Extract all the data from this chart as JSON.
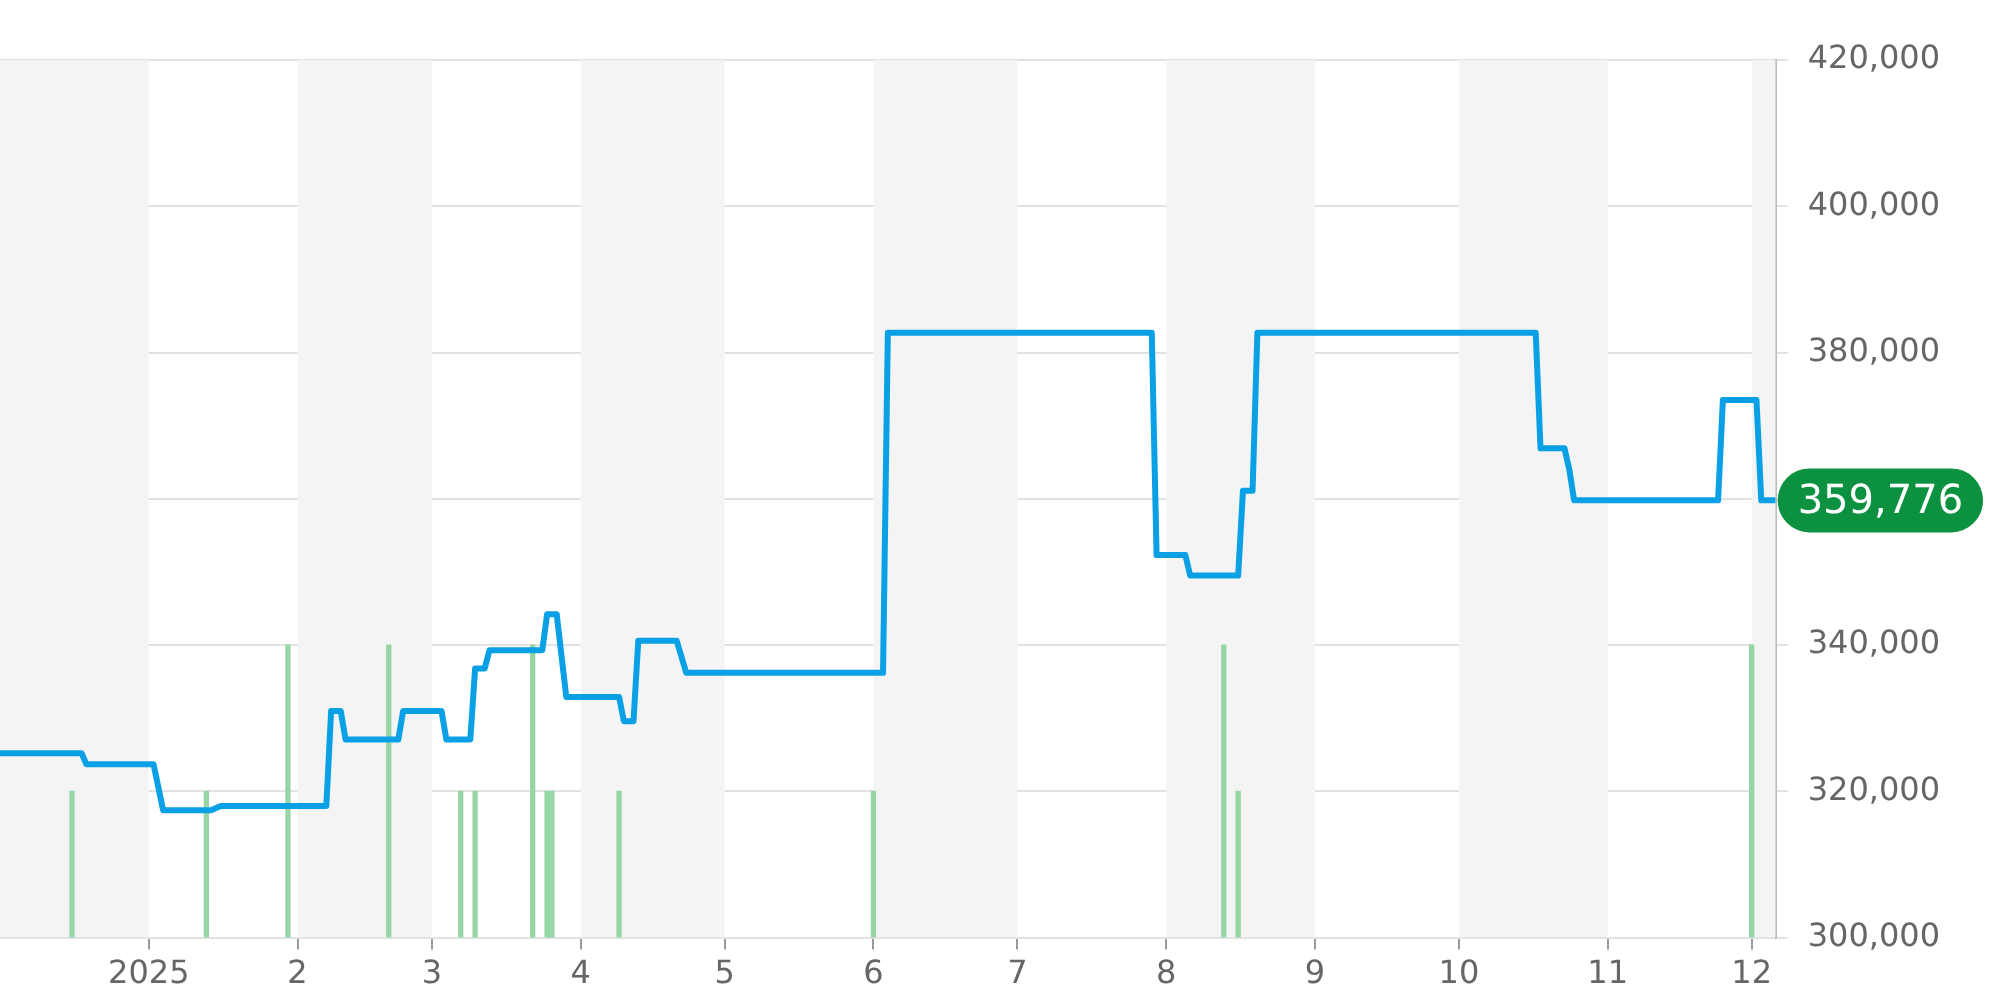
{
  "chart_data": {
    "type": "line",
    "xlim": [
      "2024-12-01",
      "2025-12-06"
    ],
    "xticks": [
      {
        "value": "2025-01-01",
        "label": "2025"
      },
      {
        "value": "2025-02-01",
        "label": "2"
      },
      {
        "value": "2025-03-01",
        "label": "3"
      },
      {
        "value": "2025-04-01",
        "label": "4"
      },
      {
        "value": "2025-05-01",
        "label": "5"
      },
      {
        "value": "2025-06-01",
        "label": "6"
      },
      {
        "value": "2025-07-01",
        "label": "7"
      },
      {
        "value": "2025-08-01",
        "label": "8"
      },
      {
        "value": "2025-09-01",
        "label": "9"
      },
      {
        "value": "2025-10-01",
        "label": "10"
      },
      {
        "value": "2025-11-01",
        "label": "11"
      },
      {
        "value": "2025-12-01",
        "label": "12"
      }
    ],
    "ylim": [
      300000,
      420000
    ],
    "yticks": [
      {
        "value": 300000,
        "label": "300,000"
      },
      {
        "value": 320000,
        "label": "320,000"
      },
      {
        "value": 340000,
        "label": "340,000"
      },
      {
        "value": 360000,
        "label": null
      },
      {
        "value": 380000,
        "label": "380,000"
      },
      {
        "value": 400000,
        "label": "400,000"
      },
      {
        "value": 420000,
        "label": "420,000"
      }
    ],
    "grid": "y",
    "legend": false,
    "marker": "none",
    "bands": [
      {
        "axis": "x",
        "from": "2024-12-01",
        "to": "2025-01-01",
        "color": "#f4f4f4"
      },
      {
        "axis": "x",
        "from": "2025-02-01",
        "to": "2025-03-01",
        "color": "#f4f4f4"
      },
      {
        "axis": "x",
        "from": "2025-04-01",
        "to": "2025-05-01",
        "color": "#f4f4f4"
      },
      {
        "axis": "x",
        "from": "2025-06-01",
        "to": "2025-07-01",
        "color": "#f4f4f4"
      },
      {
        "axis": "x",
        "from": "2025-08-01",
        "to": "2025-09-01",
        "color": "#f4f4f4"
      },
      {
        "axis": "x",
        "from": "2025-10-01",
        "to": "2025-11-01",
        "color": "#f4f4f4"
      },
      {
        "axis": "x",
        "from": "2025-12-01",
        "to": "2025-12-06",
        "color": "#f4f4f4"
      }
    ],
    "annotations": [
      {
        "text": "359,776",
        "x": "2025-12-06",
        "y": 359776
      }
    ],
    "series": [
      {
        "type": "bar",
        "color": "#96d6a4",
        "x": [
          "2024-12-16",
          "2025-01-13",
          "2025-01-30",
          "2025-02-20",
          "2025-03-07",
          "2025-03-10",
          "2025-03-22",
          "2025-03-25",
          "2025-03-26",
          "2025-04-09",
          "2025-06-01",
          "2025-08-13",
          "2025-08-16",
          "2025-12-01"
        ],
        "values": [
          320000,
          320000,
          340000,
          340000,
          320000,
          320000,
          340000,
          320000,
          320000,
          320000,
          320000,
          340000,
          320000,
          340000
        ]
      },
      {
        "color": "#0aa0e6",
        "x": [
          "2024-12-01",
          "2024-12-18",
          "2024-12-19",
          "2025-01-02",
          "2025-01-04",
          "2025-01-14",
          "2025-01-16",
          "2025-02-07",
          "2025-02-08",
          "2025-02-10",
          "2025-02-11",
          "2025-02-22",
          "2025-02-23",
          "2025-03-03",
          "2025-03-04",
          "2025-03-09",
          "2025-03-10",
          "2025-03-12",
          "2025-03-13",
          "2025-03-24",
          "2025-03-25",
          "2025-03-27",
          "2025-03-29",
          "2025-04-09",
          "2025-04-10",
          "2025-04-12",
          "2025-04-13",
          "2025-04-21",
          "2025-04-23",
          "2025-06-03",
          "2025-06-04",
          "2025-07-29",
          "2025-07-30",
          "2025-08-05",
          "2025-08-06",
          "2025-08-16",
          "2025-08-17",
          "2025-08-19",
          "2025-08-20",
          "2025-10-17",
          "2025-10-18",
          "2025-10-23",
          "2025-10-24",
          "2025-10-25",
          "2025-11-24",
          "2025-11-25",
          "2025-12-02",
          "2025-12-03",
          "2025-12-06"
        ],
        "values": [
          325200,
          325200,
          323700,
          323700,
          317400,
          317400,
          318000,
          318000,
          331000,
          331000,
          327100,
          327100,
          331000,
          331000,
          327100,
          327100,
          336800,
          336800,
          339300,
          339300,
          344200,
          344200,
          332900,
          332900,
          329600,
          329600,
          340600,
          340600,
          336200,
          336200,
          382700,
          382700,
          352300,
          352300,
          349500,
          349500,
          361100,
          361100,
          382700,
          382700,
          366900,
          366900,
          364000,
          359800,
          359800,
          373500,
          373500,
          359800,
          359800
        ]
      }
    ]
  }
}
